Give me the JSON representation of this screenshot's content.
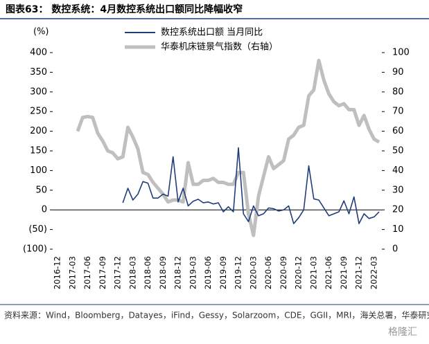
{
  "chart_data": {
    "type": "line",
    "title": "图表63： 数控系统：4月数控系统出口额同比降幅收窄",
    "y_label": "(%)",
    "source": "资料来源：Wind，Bloomberg，Datayes，iFind，Gessy，Solarzoom，CDE，GGII，MRI，海关总署，华泰研究",
    "watermark": "格隆汇",
    "categories": [
      "2016-12",
      null,
      null,
      "2017-03",
      null,
      null,
      "2017-06",
      null,
      null,
      "2017-09",
      null,
      null,
      "2017-12",
      null,
      null,
      "2018-03",
      null,
      null,
      "2018-06",
      null,
      null,
      "2018-09",
      null,
      null,
      "2018-12",
      null,
      null,
      "2019-03",
      null,
      null,
      "2019-06",
      null,
      null,
      "2019-09",
      null,
      null,
      "2019-12",
      null,
      null,
      "2020-03",
      null,
      null,
      "2020-06",
      null,
      null,
      "2020-09",
      null,
      null,
      "2020-12",
      null,
      null,
      "2021-03",
      null,
      null,
      "2021-06",
      null,
      null,
      "2021-09",
      null,
      null,
      "2021-12",
      null,
      null,
      "2022-03",
      null
    ],
    "series": [
      {
        "name": "数控系统出口额 当月同比",
        "color": "#1f3d7a",
        "axis": "y",
        "values": [
          null,
          null,
          null,
          null,
          null,
          null,
          null,
          null,
          null,
          null,
          null,
          null,
          null,
          18,
          55,
          25,
          40,
          72,
          68,
          30,
          30,
          40,
          35,
          135,
          20,
          55,
          10,
          22,
          27,
          18,
          20,
          15,
          18,
          -5,
          8,
          -5,
          158,
          -10,
          -30,
          10,
          -15,
          -10,
          5,
          3,
          -3,
          0,
          10,
          -35,
          -20,
          0,
          112,
          28,
          25,
          5,
          -15,
          -10,
          -5,
          23,
          -10,
          33,
          -35,
          -10,
          -22,
          -18,
          -5
        ]
      },
      {
        "name": "华泰机床链景气指数（右轴）",
        "color": "#bfbfbf",
        "axis": "y2",
        "values": [
          null,
          null,
          null,
          null,
          60,
          67,
          67.5,
          67,
          59,
          55,
          50,
          49,
          46,
          47,
          62,
          57,
          51,
          39,
          38,
          34,
          31,
          28,
          24,
          25,
          25,
          24,
          44,
          33,
          33,
          35,
          35,
          36,
          34,
          34,
          33,
          33,
          39,
          39,
          18,
          7,
          27,
          37,
          47,
          41,
          43,
          45,
          56,
          58,
          62,
          63,
          78,
          81,
          96,
          86,
          79,
          75,
          73,
          74,
          71,
          71,
          63,
          68,
          61,
          56,
          54.5
        ]
      }
    ],
    "ylim": [
      -100,
      400
    ],
    "yticks": [
      {
        "value": -100,
        "label": "(100)"
      },
      {
        "value": -50,
        "label": "(50)"
      },
      0,
      50,
      100,
      150,
      200,
      250,
      300,
      350,
      400
    ],
    "y2lim": [
      0,
      100
    ],
    "y2ticks": [
      0,
      10,
      20,
      30,
      40,
      50,
      60,
      70,
      80,
      90,
      100
    ]
  }
}
